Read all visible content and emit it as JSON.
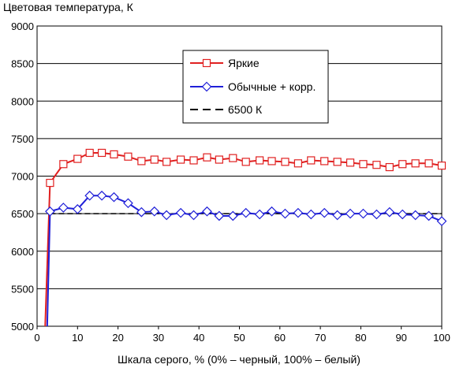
{
  "chart_data": {
    "type": "line",
    "title": "Цветовая температура, К",
    "xlabel": "Шкала серого, % (0% – черный, 100% – белый)",
    "ylabel": "",
    "xlim": [
      0,
      100
    ],
    "ylim": [
      5000,
      9000
    ],
    "xticks": [
      0,
      10,
      20,
      30,
      40,
      50,
      60,
      70,
      80,
      90,
      100
    ],
    "yticks": [
      5000,
      5500,
      6000,
      6500,
      7000,
      7500,
      8000,
      8500,
      9000
    ],
    "grid": "horizontal",
    "legend_position": "upper-right",
    "series": [
      {
        "name": "Яркие",
        "color": "#e02020",
        "marker": "square",
        "x": [
          2,
          3.2,
          6.5,
          10,
          13,
          16,
          19,
          22.5,
          25.8,
          29,
          32,
          35.5,
          38.7,
          42,
          45,
          48.4,
          51.6,
          55,
          58,
          61.3,
          64.5,
          67.7,
          71,
          74.2,
          77.4,
          80.6,
          83.9,
          87.1,
          90.3,
          93.5,
          96.8,
          100
        ],
        "y": [
          5000,
          6910,
          7160,
          7230,
          7310,
          7310,
          7290,
          7260,
          7200,
          7220,
          7190,
          7220,
          7210,
          7250,
          7220,
          7240,
          7190,
          7210,
          7200,
          7190,
          7170,
          7210,
          7200,
          7190,
          7180,
          7160,
          7150,
          7120,
          7160,
          7170,
          7170,
          7140
        ]
      },
      {
        "name": "Обычные + корр.",
        "color": "#1f1fd8",
        "marker": "diamond",
        "x": [
          2.5,
          3.2,
          6.5,
          10,
          13,
          16,
          19,
          22.5,
          25.8,
          29,
          32,
          35.5,
          38.7,
          42,
          45,
          48.4,
          51.6,
          55,
          58,
          61.3,
          64.5,
          67.7,
          71,
          74.2,
          77.4,
          80.6,
          83.9,
          87.1,
          90.3,
          93.5,
          96.8,
          100
        ],
        "y": [
          5000,
          6530,
          6580,
          6560,
          6740,
          6740,
          6720,
          6640,
          6520,
          6530,
          6480,
          6510,
          6480,
          6530,
          6470,
          6470,
          6510,
          6490,
          6530,
          6500,
          6510,
          6490,
          6510,
          6480,
          6500,
          6500,
          6490,
          6520,
          6490,
          6480,
          6470,
          6400
        ]
      },
      {
        "name": "6500 К",
        "color": "#000000",
        "dash": true,
        "x": [
          3.2,
          100
        ],
        "y": [
          6500,
          6500
        ]
      }
    ]
  }
}
